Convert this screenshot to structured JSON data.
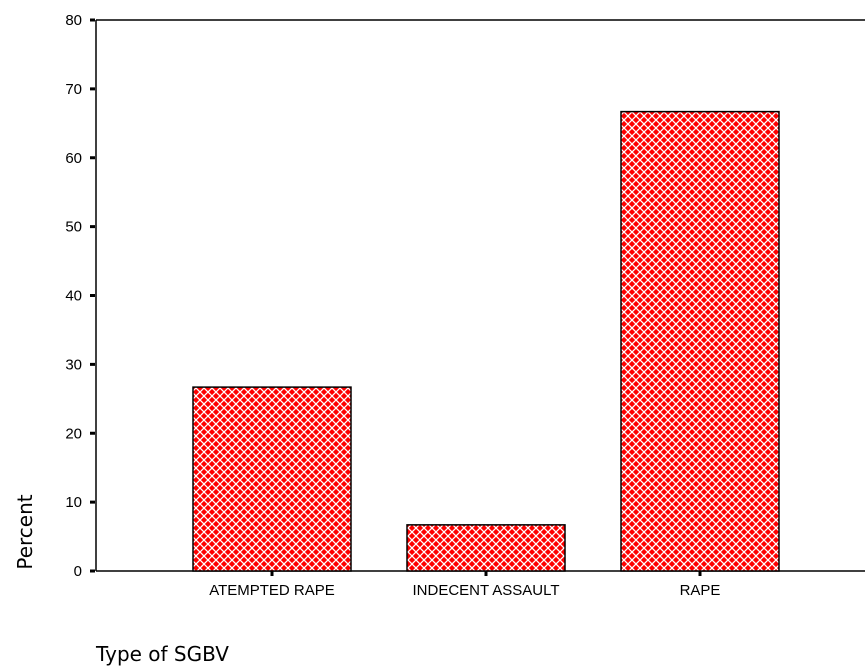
{
  "chart_data": {
    "type": "bar",
    "categories": [
      "ATEMPTED RAPE",
      "INDECENT ASSAULT",
      "RAPE"
    ],
    "values": [
      26.7,
      6.7,
      66.7
    ],
    "title": "",
    "xlabel": "Type of SGBV",
    "ylabel": "Percent",
    "ylim": [
      0,
      80
    ],
    "yticks": [
      0,
      10,
      20,
      30,
      40,
      50,
      60,
      70,
      80
    ],
    "grid": false,
    "legend": "none",
    "bar_color": "#ff0000",
    "bar_pattern": "white crosshatch",
    "bar_outline": "#000000"
  }
}
